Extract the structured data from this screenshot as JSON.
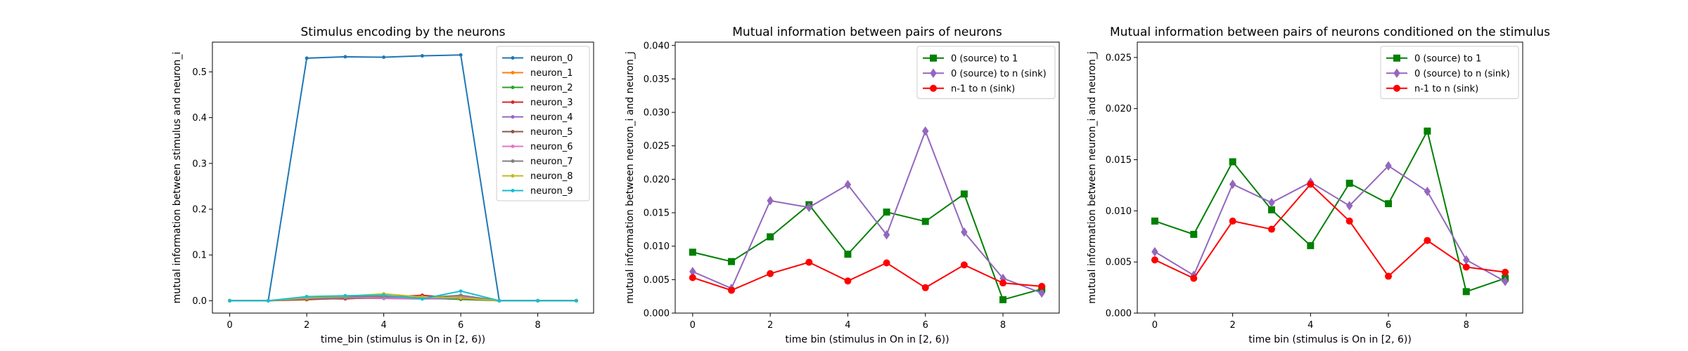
{
  "chart_data": [
    {
      "type": "line",
      "title": "Stimulus encoding by the neurons",
      "xlabel": "time_bin (stimulus is On in [2, 6))",
      "ylabel": "mutual information between stimulus and neuron_i",
      "xlim": [
        -0.45,
        9.45
      ],
      "ylim": [
        -0.027,
        0.565
      ],
      "xticks": [
        0,
        2,
        4,
        6,
        8
      ],
      "yticks": [
        0.0,
        0.1,
        0.2,
        0.3,
        0.4,
        0.5
      ],
      "ytick_labels": [
        "0.0",
        "0.1",
        "0.2",
        "0.3",
        "0.4",
        "0.5"
      ],
      "legend_position": "top-right",
      "x": [
        0,
        1,
        2,
        3,
        4,
        5,
        6,
        7,
        8,
        9
      ],
      "series": [
        {
          "name": "neuron_0",
          "color": "#1f77b4",
          "marker": "dot",
          "values": [
            0,
            0,
            0.53,
            0.533,
            0.532,
            0.535,
            0.537,
            0,
            0,
            0
          ]
        },
        {
          "name": "neuron_1",
          "color": "#ff7f0e",
          "marker": "dot",
          "values": [
            0,
            0,
            0.002,
            0.006,
            0.007,
            0.005,
            0.004,
            0,
            0,
            0
          ]
        },
        {
          "name": "neuron_2",
          "color": "#2ca02c",
          "marker": "dot",
          "values": [
            0,
            0,
            0.006,
            0.005,
            0.009,
            0.006,
            0.003,
            0,
            0,
            0
          ]
        },
        {
          "name": "neuron_3",
          "color": "#d62728",
          "marker": "dot",
          "values": [
            0,
            0,
            0.005,
            0.004,
            0.008,
            0.012,
            0.005,
            0,
            0,
            0
          ]
        },
        {
          "name": "neuron_4",
          "color": "#9467bd",
          "marker": "dot",
          "values": [
            0,
            0,
            0.004,
            0.006,
            0.005,
            0.004,
            0.006,
            0,
            0,
            0
          ]
        },
        {
          "name": "neuron_5",
          "color": "#8c564b",
          "marker": "dot",
          "values": [
            0,
            0,
            0.003,
            0.005,
            0.006,
            0.007,
            0.008,
            0,
            0,
            0
          ]
        },
        {
          "name": "neuron_6",
          "color": "#e377c2",
          "marker": "dot",
          "values": [
            0,
            0,
            0.005,
            0.007,
            0.006,
            0.005,
            0.01,
            0,
            0,
            0
          ]
        },
        {
          "name": "neuron_7",
          "color": "#7f7f7f",
          "marker": "dot",
          "values": [
            0,
            0,
            0.006,
            0.008,
            0.01,
            0.006,
            0.012,
            0,
            0,
            0
          ]
        },
        {
          "name": "neuron_8",
          "color": "#bcbd22",
          "marker": "dot",
          "values": [
            0,
            0,
            0.007,
            0.01,
            0.015,
            0.008,
            0.006,
            0,
            0,
            0
          ]
        },
        {
          "name": "neuron_9",
          "color": "#17becf",
          "marker": "dot",
          "values": [
            0,
            0,
            0.009,
            0.011,
            0.012,
            0.004,
            0.021,
            0,
            0,
            0
          ]
        }
      ]
    },
    {
      "type": "line",
      "title": "Mutual information between pairs of neurons",
      "xlabel": "time bin (stimulus in On in [2, 6))",
      "ylabel": "mutual information between neuron_i and neuron_j",
      "xlim": [
        -0.45,
        9.45
      ],
      "ylim": [
        0,
        0.0405
      ],
      "xticks": [
        0,
        2,
        4,
        6,
        8
      ],
      "yticks": [
        0.0,
        0.005,
        0.01,
        0.015,
        0.02,
        0.025,
        0.03,
        0.035,
        0.04
      ],
      "ytick_labels": [
        "0.000",
        "0.005",
        "0.010",
        "0.015",
        "0.020",
        "0.025",
        "0.030",
        "0.035",
        "0.040"
      ],
      "legend_position": "top-right",
      "x": [
        0,
        1,
        2,
        3,
        4,
        5,
        6,
        7,
        8,
        9
      ],
      "series": [
        {
          "name": "0 (source) to 1",
          "color": "#008000",
          "marker": "square",
          "values": [
            0.0091,
            0.0077,
            0.0114,
            0.0162,
            0.0088,
            0.0151,
            0.0137,
            0.0178,
            0.002,
            0.0036
          ]
        },
        {
          "name": "0 (source) to n (sink)",
          "color": "#9467bd",
          "marker": "diamond",
          "values": [
            0.0062,
            0.0037,
            0.0168,
            0.0158,
            0.0192,
            0.0117,
            0.0272,
            0.0121,
            0.0052,
            0.003
          ]
        },
        {
          "name": "n-1 to n (sink)",
          "color": "#ff0000",
          "marker": "dot",
          "values": [
            0.0053,
            0.0034,
            0.0059,
            0.0076,
            0.0048,
            0.0075,
            0.0038,
            0.0072,
            0.0045,
            0.004
          ]
        }
      ]
    },
    {
      "type": "line",
      "title": "Mutual information between pairs of neurons conditioned on the stimulus",
      "xlabel": "time bin (stimulus is On in [2, 6))",
      "ylabel": "mutual information between neuron_i and neuron_j",
      "xlim": [
        -0.45,
        9.45
      ],
      "ylim": [
        0,
        0.0265
      ],
      "xticks": [
        0,
        2,
        4,
        6,
        8
      ],
      "yticks": [
        0.0,
        0.005,
        0.01,
        0.015,
        0.02,
        0.025
      ],
      "ytick_labels": [
        "0.000",
        "0.005",
        "0.010",
        "0.015",
        "0.020",
        "0.025"
      ],
      "legend_position": "top-right",
      "x": [
        0,
        1,
        2,
        3,
        4,
        5,
        6,
        7,
        8,
        9
      ],
      "series": [
        {
          "name": "0 (source) to 1",
          "color": "#008000",
          "marker": "square",
          "values": [
            0.009,
            0.0077,
            0.0148,
            0.0101,
            0.0066,
            0.0127,
            0.0107,
            0.0178,
            0.0021,
            0.0034
          ]
        },
        {
          "name": "0 (source) to n (sink)",
          "color": "#9467bd",
          "marker": "diamond",
          "values": [
            0.006,
            0.0037,
            0.0126,
            0.0108,
            0.0128,
            0.0105,
            0.0144,
            0.0119,
            0.0052,
            0.0031
          ]
        },
        {
          "name": "n-1 to n (sink)",
          "color": "#ff0000",
          "marker": "dot",
          "values": [
            0.0052,
            0.0034,
            0.009,
            0.0082,
            0.0126,
            0.009,
            0.0036,
            0.0071,
            0.0045,
            0.004
          ]
        }
      ]
    }
  ]
}
